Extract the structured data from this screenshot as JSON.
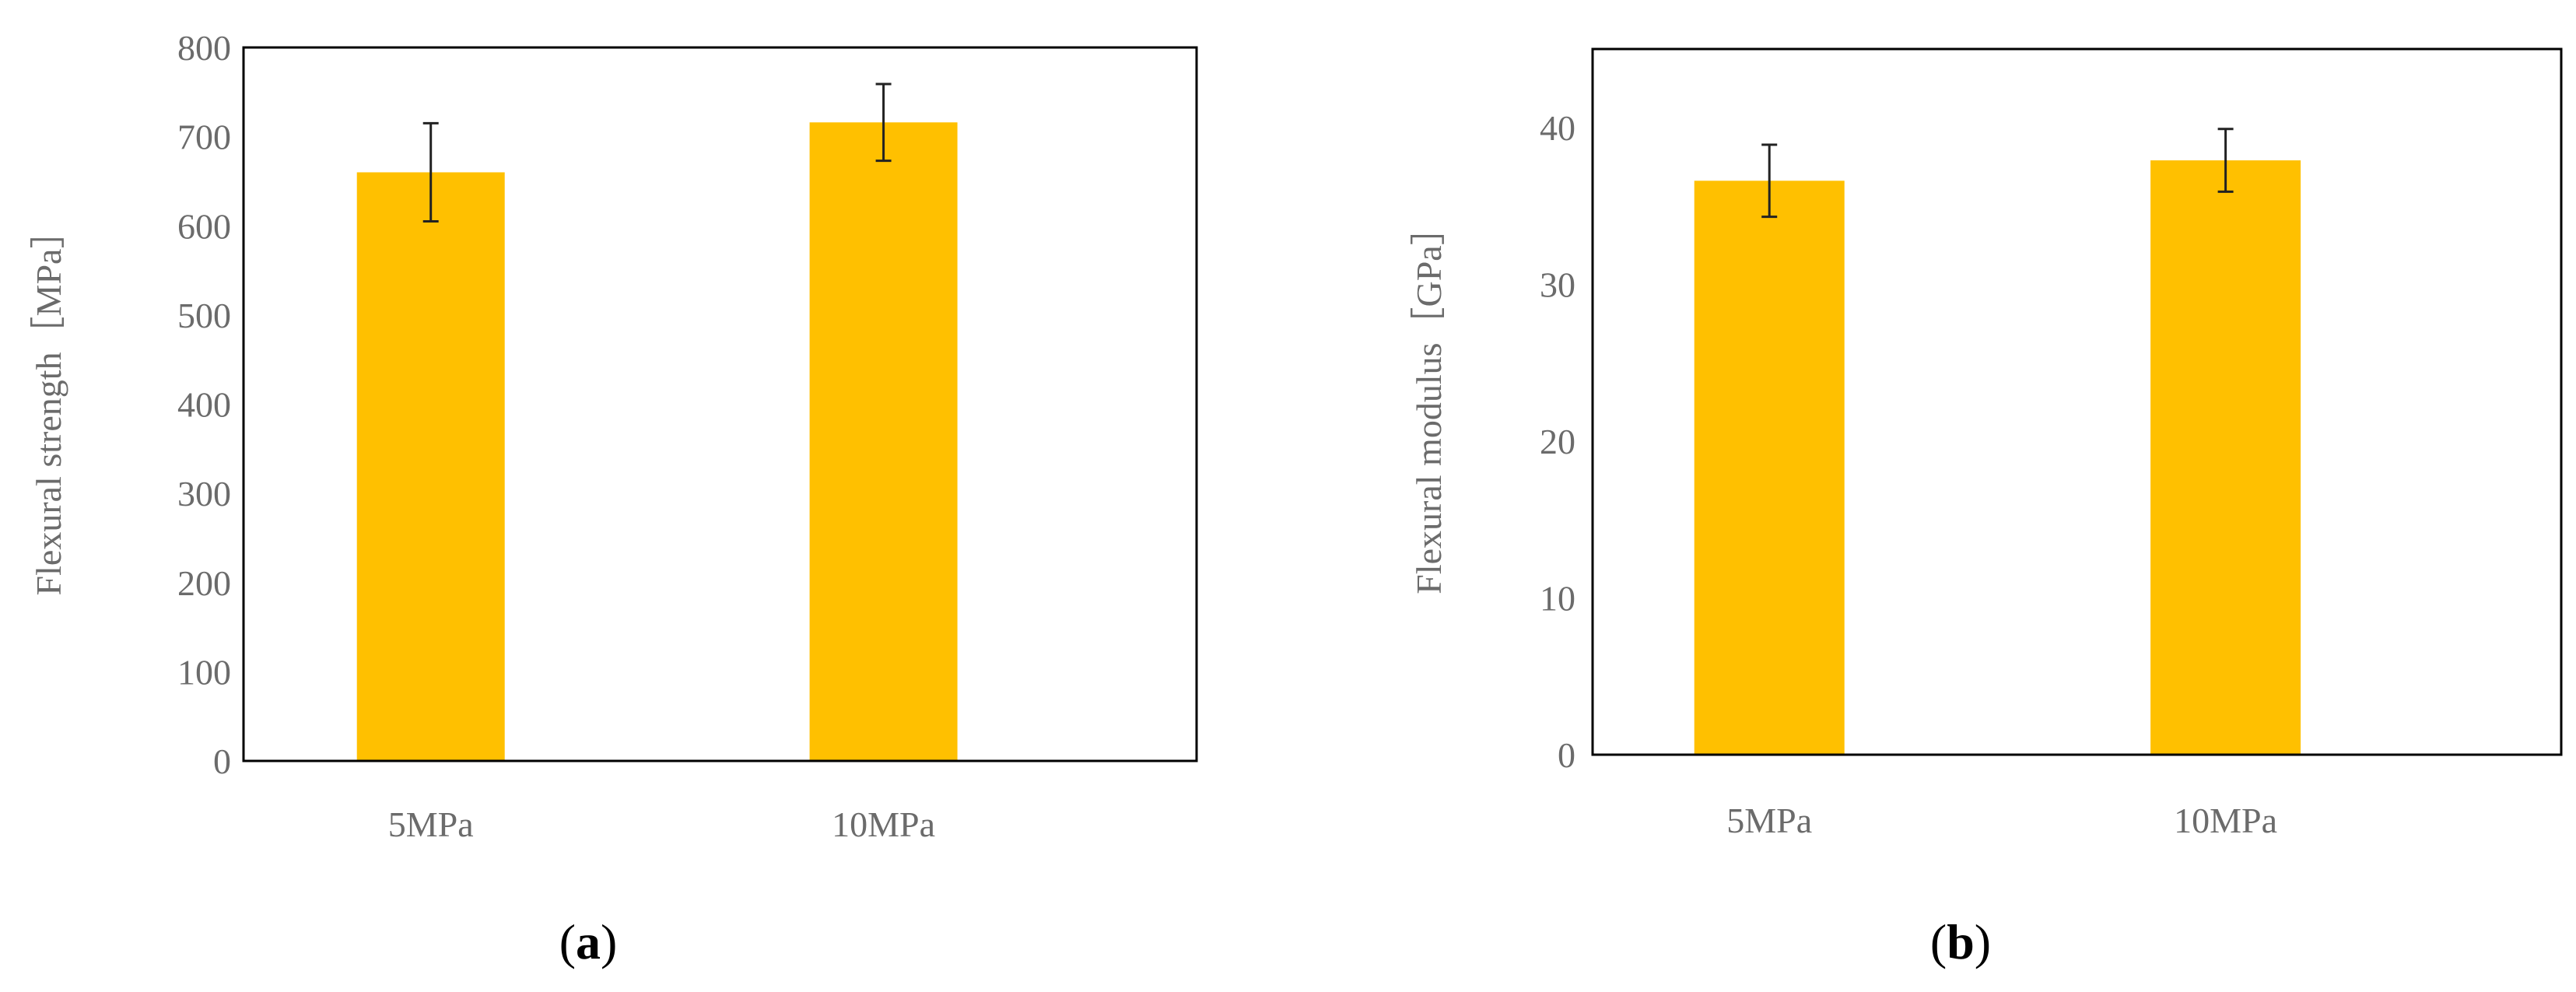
{
  "colors": {
    "bar": "#FFC000",
    "error_bar": "#222222",
    "axis": "#000000",
    "text": "#6b6b6b"
  },
  "chart_data": [
    {
      "type": "bar",
      "panel_label": "a",
      "categories": [
        "5MPa",
        "10MPa"
      ],
      "values": [
        660,
        716
      ],
      "errors": [
        55,
        43
      ],
      "xlabel": "",
      "ylabel": "Flexural strength［MPa］",
      "ylim": [
        0,
        800
      ],
      "yticks": [
        0,
        100,
        200,
        300,
        400,
        500,
        600,
        700,
        800
      ],
      "grid": false,
      "legend": "none"
    },
    {
      "type": "bar",
      "panel_label": "b",
      "categories": [
        "5MPa",
        "10MPa"
      ],
      "values": [
        36.6,
        37.9
      ],
      "errors": [
        2.3,
        2.0
      ],
      "xlabel": "",
      "ylabel": "Flexural modulus［GPa］",
      "ylim": [
        0,
        45
      ],
      "yticks": [
        0,
        10,
        20,
        30,
        40
      ],
      "grid": false,
      "legend": "none"
    }
  ]
}
